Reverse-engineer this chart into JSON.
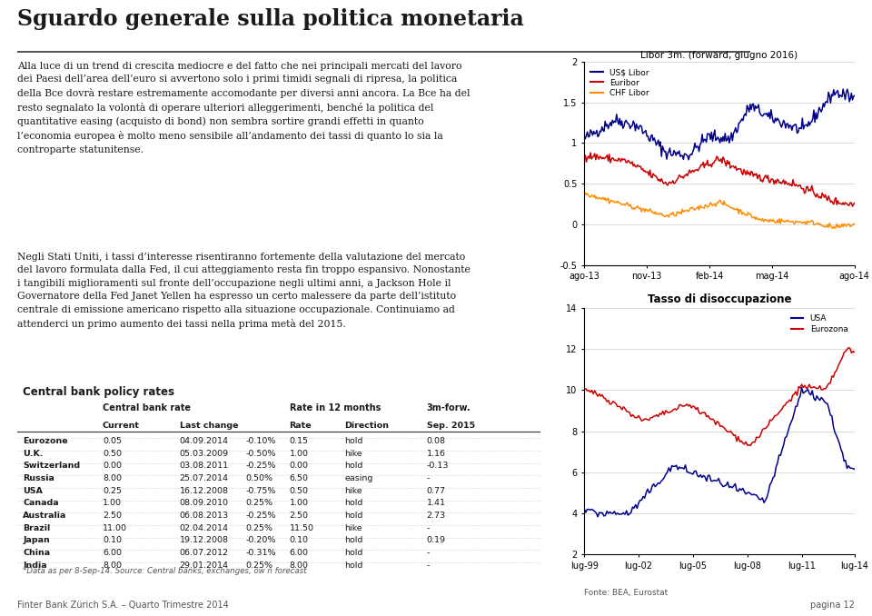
{
  "title": "Sguardo generale sulla politica monetaria",
  "title_color": "#1a1a1a",
  "background_color": "#ffffff",
  "para1": "Alla luce di un trend di crescita mediocre e del fatto che nei principali mercati del lavoro\ndei Paesi dell’area dell’euro si avvertono solo i primi timidi segnali di ripresa, la politica\ndella Bce dovrà restare estremamente accomodante per diversi anni ancora. La Bce ha del\nresto segnalato la volontà di operare ulteriori alleggerimenti, benché la politica del\nquantitative easing (acquisto di bond) non sembra sortire grandi effetti in quanto\nl’economia europea è molto meno sensibile all’andamento dei tassi di quanto lo sia la\ncontroparte statunitense.",
  "para2": "Negli Stati Uniti, i tassi d’interesse risentiranno fortemente della valutazione del mercato\ndel lavoro formulata dalla Fed, il cui atteggiamento resta fin troppo espansivo. Nonostante\ni tangibili miglioramenti sul fronte dell’occupazione negli ultimi anni, a Jackson Hole il\nGovernatore della Fed Janet Yellen ha espresso un certo malessere da parte dell’istituto\ncentrale di emissione americano rispetto alla situazione occupazionale. Continuiamo ad\nattenderci un primo aumento dei tassi nella prima metà del 2015.",
  "table_title": "Central bank policy rates",
  "table_rows": [
    [
      "Eurozone",
      "0.05",
      "04.09.2014",
      "-0.10%",
      "0.15",
      "hold",
      "0.08"
    ],
    [
      "U.K.",
      "0.50",
      "05.03.2009",
      "-0.50%",
      "1.00",
      "hike",
      "1.16"
    ],
    [
      "Switzerland",
      "0.00",
      "03.08.2011",
      "-0.25%",
      "0.00",
      "hold",
      "-0.13"
    ],
    [
      "Russia",
      "8.00",
      "25.07.2014",
      "0.50%",
      "6.50",
      "easing",
      "-"
    ],
    [
      "USA",
      "0.25",
      "16.12.2008",
      "-0.75%",
      "0.50",
      "hike",
      "0.77"
    ],
    [
      "Canada",
      "1.00",
      "08.09.2010",
      "0.25%",
      "1.00",
      "hold",
      "1.41"
    ],
    [
      "Australia",
      "2.50",
      "06.08.2013",
      "-0.25%",
      "2.50",
      "hold",
      "2.73"
    ],
    [
      "Brazil",
      "11.00",
      "02.04.2014",
      "0.25%",
      "11.50",
      "hike",
      "-"
    ],
    [
      "Japan",
      "0.10",
      "19.12.2008",
      "-0.20%",
      "0.10",
      "hold",
      "0.19"
    ],
    [
      "China",
      "6.00",
      "06.07.2012",
      "-0.31%",
      "6.00",
      "hold",
      "-"
    ],
    [
      "India",
      "8.00",
      "29.01.2014",
      "0.25%",
      "8.00",
      "hold",
      "-"
    ]
  ],
  "table_footnote": "*Data as per 8-Sep-14. Source: Central banks, exchanges, ow n forecast",
  "chart1_title": "Libor 3m. (forward, giugno 2016)",
  "chart1_yticks": [
    2.0,
    1.5,
    1.0,
    0.5,
    0.0,
    -0.5
  ],
  "chart1_xticks": [
    "ago-13",
    "nov-13",
    "feb-14",
    "mag-14",
    "ago-14"
  ],
  "chart1_legend": [
    "US$ Libor",
    "Euribor",
    "CHF Libor"
  ],
  "chart1_colors": [
    "#00008B",
    "#CC0000",
    "#FF8C00"
  ],
  "chart2_title": "Tasso di disoccupazione",
  "chart2_yticks": [
    2,
    4,
    6,
    8,
    10,
    12,
    14
  ],
  "chart2_xticks": [
    "lug-99",
    "lug-02",
    "lug-05",
    "lug-08",
    "lug-11",
    "lug-14"
  ],
  "chart2_legend": [
    "USA",
    "Eurozona"
  ],
  "chart2_colors": [
    "#00008B",
    "#CC0000"
  ],
  "chart2_footnote": "Fonte: BEA, Eurostat",
  "footer_left": "Finter Bank Zürich S.A. – Quarto Trimestre 2014",
  "footer_right": "pagina 12"
}
